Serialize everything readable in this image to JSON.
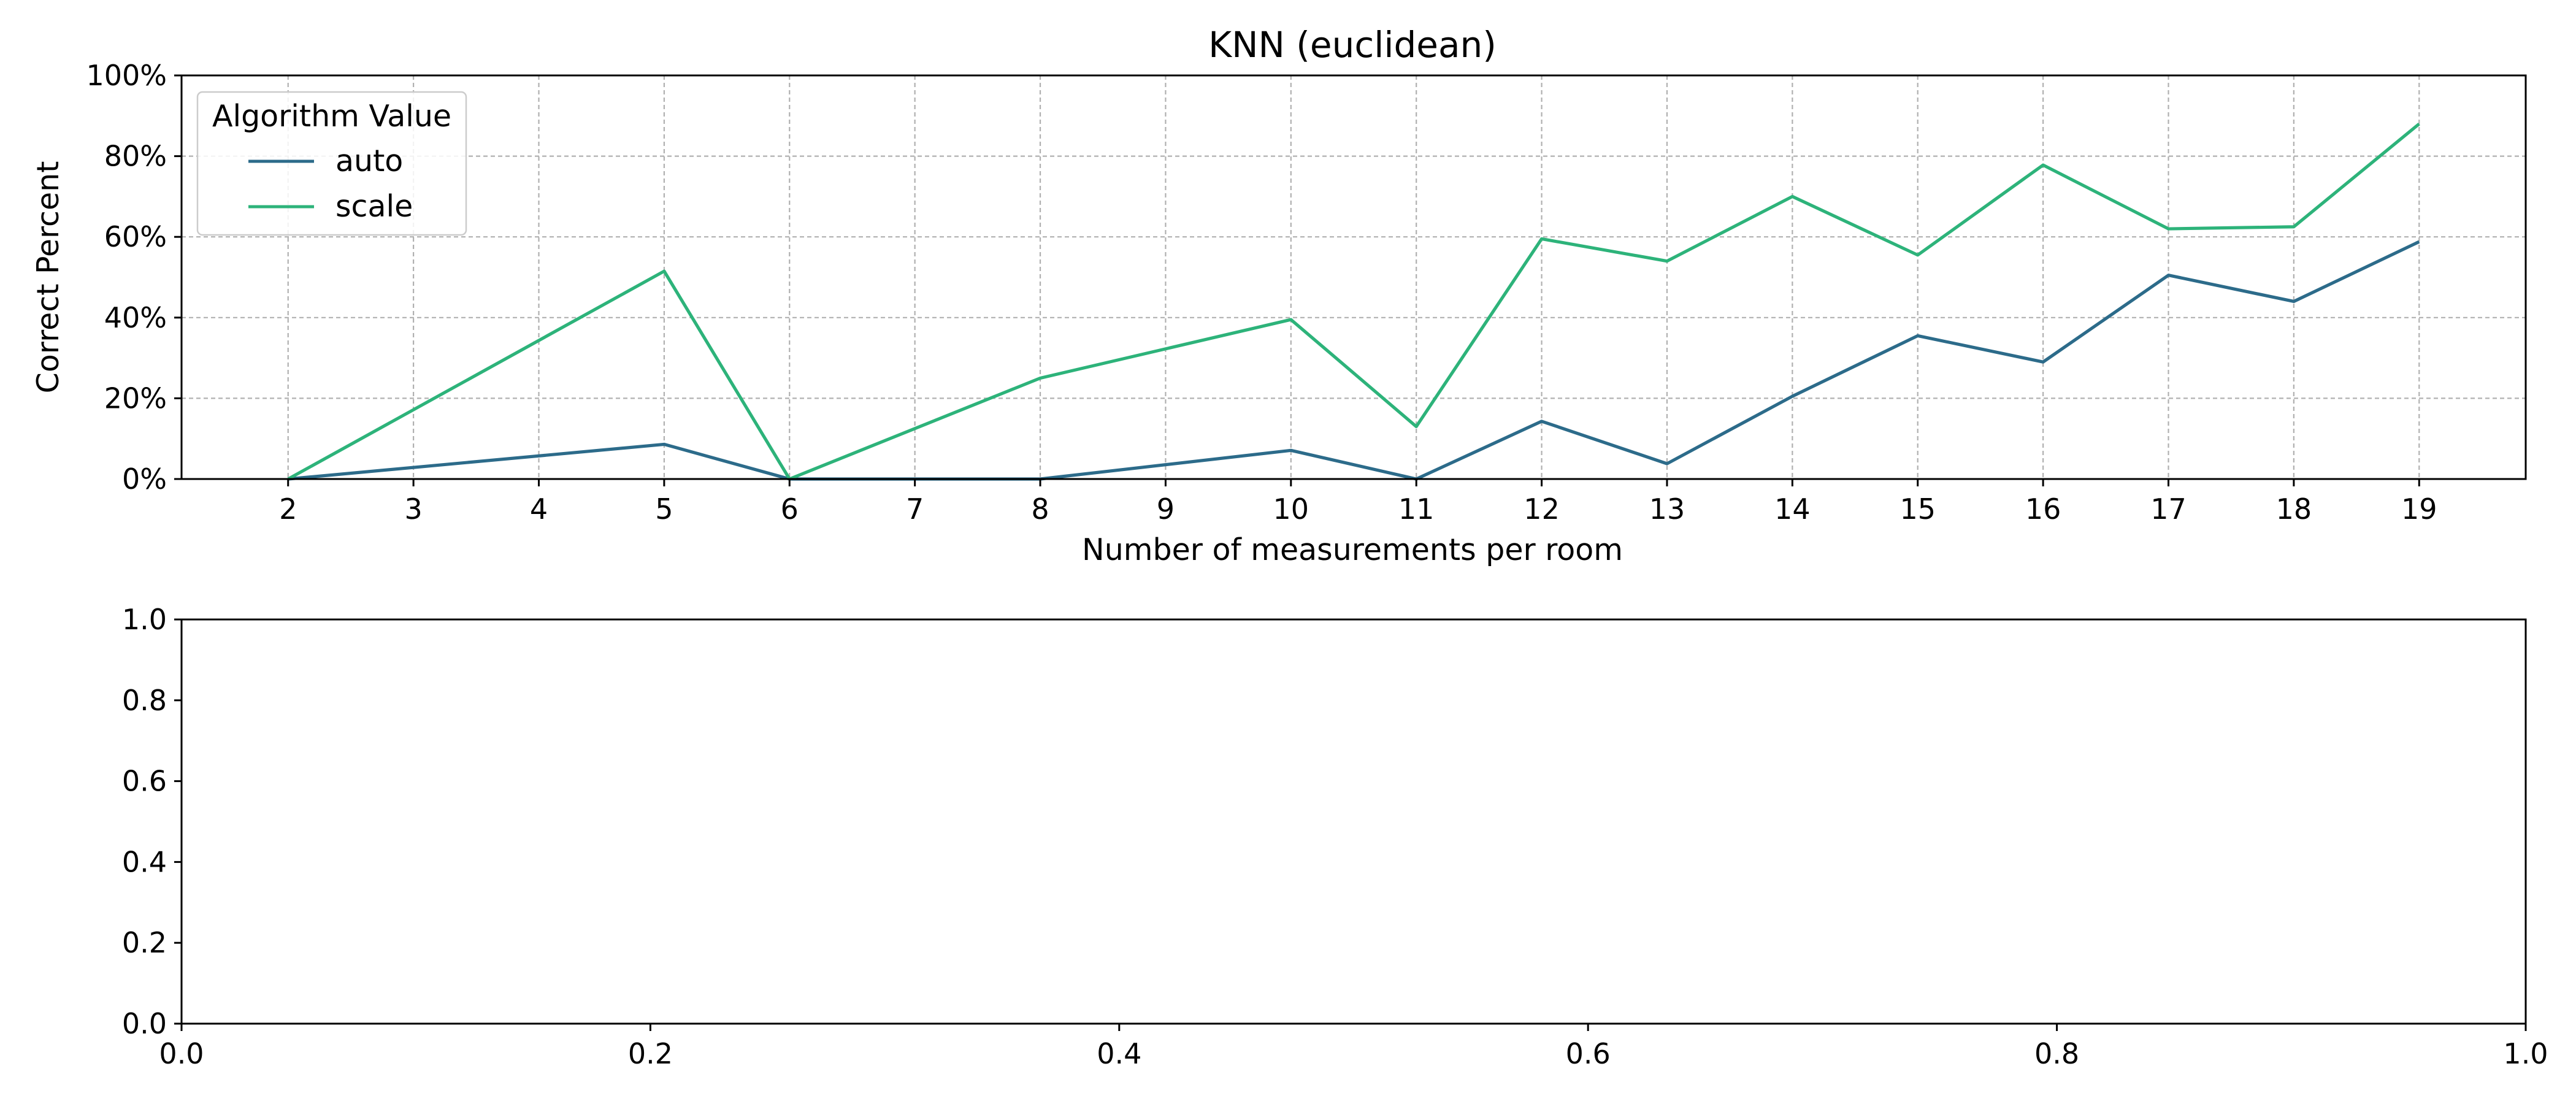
{
  "chart_data": [
    {
      "type": "line",
      "title": "KNN (euclidean)",
      "xlabel": "Number of measurements per room",
      "ylabel": "Correct Percent",
      "x": [
        2,
        3,
        4,
        5,
        6,
        7,
        8,
        9,
        10,
        11,
        12,
        13,
        14,
        15,
        16,
        17,
        18,
        19
      ],
      "xlim": [
        1.15,
        19.85
      ],
      "ylim": [
        0,
        100
      ],
      "yticks": [
        0,
        20,
        40,
        60,
        80,
        100
      ],
      "ytick_labels": [
        "0%",
        "20%",
        "40%",
        "60%",
        "80%",
        "100%"
      ],
      "grid": true,
      "legend": {
        "title": "Algorithm Value",
        "placement": "upper-left"
      },
      "series": [
        {
          "name": "auto",
          "color": "#2c6b8a",
          "x": [
            2,
            5,
            6,
            8,
            10,
            11,
            12,
            13,
            14,
            15,
            16,
            17,
            18,
            19
          ],
          "values": [
            0,
            8.6,
            0,
            0,
            7.1,
            0,
            14.3,
            3.8,
            20.5,
            35.5,
            29.0,
            50.5,
            44.0,
            58.8
          ]
        },
        {
          "name": "scale",
          "color": "#2db37a",
          "x": [
            2,
            5,
            6,
            8,
            10,
            11,
            12,
            13,
            14,
            15,
            16,
            17,
            18,
            19
          ],
          "values": [
            0,
            51.5,
            0,
            25.0,
            39.5,
            13.0,
            59.5,
            54.0,
            70.0,
            55.5,
            77.8,
            62.0,
            62.5,
            88.0
          ]
        }
      ]
    },
    {
      "type": "line",
      "title": "",
      "xlabel": "",
      "ylabel": "",
      "xlim": [
        0,
        1
      ],
      "ylim": [
        0,
        1
      ],
      "xticks": [
        0,
        0.2,
        0.4,
        0.6,
        0.8,
        1.0
      ],
      "xtick_labels": [
        "0.0",
        "0.2",
        "0.4",
        "0.6",
        "0.8",
        "1.0"
      ],
      "yticks": [
        0,
        0.2,
        0.4,
        0.6,
        0.8,
        1.0
      ],
      "ytick_labels": [
        "0.0",
        "0.2",
        "0.4",
        "0.6",
        "0.8",
        "1.0"
      ],
      "grid": false,
      "series": []
    }
  ]
}
